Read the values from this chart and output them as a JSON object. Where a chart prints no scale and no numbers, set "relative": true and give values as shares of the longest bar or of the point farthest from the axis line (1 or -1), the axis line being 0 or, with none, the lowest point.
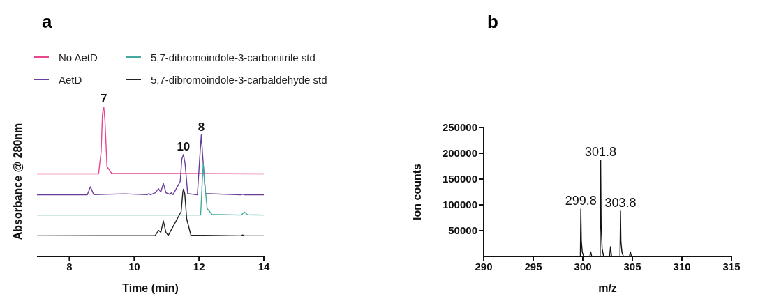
{
  "chart_data": [
    {
      "type": "line",
      "title": "a",
      "xlabel": "Time (min)",
      "ylabel": "Absorbance @ 280nm",
      "relative": true,
      "xlim": [
        7,
        14
      ],
      "xticks": [
        8,
        10,
        12,
        14
      ],
      "legend": "top",
      "grid": false,
      "marker": "none",
      "line_style": "solid",
      "series": [
        {
          "name": "No AetD",
          "color": "#e8478f",
          "x": [
            7,
            8.9,
            8.98,
            9.02,
            9.06,
            9.1,
            9.16,
            9.3,
            14
          ],
          "values": [
            0.551,
            0.551,
            0.7,
            0.95,
            1,
            0.9,
            0.6,
            0.555,
            0.551
          ]
        },
        {
          "name": "AetD",
          "color": "#6a3d9a",
          "x": [
            7,
            8.55,
            8.65,
            8.75,
            9.7,
            10.4,
            10.45,
            10.5,
            10.65,
            10.75,
            10.82,
            10.9,
            10.98,
            11.1,
            11.15,
            11.2,
            11.42,
            11.47,
            11.52,
            11.57,
            11.65,
            11.95,
            12.02,
            12.07,
            12.12,
            12.2,
            13.3,
            13.35,
            13.4,
            14
          ],
          "values": [
            0.411,
            0.411,
            0.465,
            0.413,
            0.418,
            0.412,
            0.42,
            0.412,
            0.425,
            0.452,
            0.43,
            0.488,
            0.425,
            0.415,
            0.425,
            0.413,
            0.5,
            0.65,
            0.68,
            0.62,
            0.42,
            0.411,
            0.65,
            0.811,
            0.65,
            0.42,
            0.411,
            0.416,
            0.411,
            0.411
          ]
        },
        {
          "name": "5,7-dibromoindole-3-carbonitrile std",
          "color": "#45a8a0",
          "x": [
            7,
            12.05,
            12.1,
            12.13,
            12.17,
            12.25,
            12.4,
            13.3,
            13.4,
            13.5,
            14
          ],
          "values": [
            0.276,
            0.276,
            0.5,
            0.618,
            0.5,
            0.32,
            0.28,
            0.276,
            0.296,
            0.278,
            0.276
          ]
        },
        {
          "name": "5,7-dibromoindole-3-carbaldehyde std",
          "color": "#222222",
          "x": [
            7,
            10.65,
            10.75,
            10.82,
            10.9,
            10.98,
            11.05,
            11.45,
            11.5,
            11.52,
            11.56,
            11.62,
            11.75,
            13.3,
            13.35,
            13.4,
            14
          ],
          "values": [
            0.138,
            0.14,
            0.174,
            0.16,
            0.237,
            0.16,
            0.14,
            0.3,
            0.43,
            0.449,
            0.42,
            0.25,
            0.142,
            0.138,
            0.143,
            0.138,
            0.138
          ]
        }
      ],
      "annotations": [
        {
          "text": "7",
          "x": 9.06,
          "y": 1
        },
        {
          "text": "10",
          "x": 11.52,
          "y": 0.68
        },
        {
          "text": "8",
          "x": 12.07,
          "y": 0.811
        }
      ]
    },
    {
      "type": "line",
      "title": "b",
      "xlabel": "m/z",
      "ylabel": "Ion counts",
      "xlim": [
        290,
        315
      ],
      "xticks": [
        290,
        295,
        300,
        305,
        310,
        315
      ],
      "ylim": [
        0,
        250000
      ],
      "yticks": [
        50000,
        100000,
        150000,
        200000,
        250000
      ],
      "legend": false,
      "grid": false,
      "marker": "none",
      "line_style": "solid",
      "series": [
        {
          "color": "#111111",
          "x": [
            290,
            299.75,
            299.8,
            299.85,
            299.95,
            300.1,
            300.7,
            300.8,
            300.9,
            301.75,
            301.8,
            301.85,
            301.95,
            302.1,
            302.7,
            302.8,
            302.9,
            303.75,
            303.8,
            303.85,
            303.95,
            304.1,
            304.7,
            304.8,
            304.9,
            315
          ],
          "values": [
            0,
            0,
            92000,
            30000,
            8000,
            0,
            0,
            9000,
            0,
            0,
            187000,
            60000,
            15000,
            0,
            0,
            19000,
            0,
            0,
            88000,
            28000,
            8000,
            0,
            0,
            9000,
            0,
            0
          ]
        }
      ],
      "annotations": [
        {
          "text": "299.8",
          "x": 299.8,
          "y": 92000
        },
        {
          "text": "301.8",
          "x": 301.8,
          "y": 187000
        },
        {
          "text": "303.8",
          "x": 303.8,
          "y": 88000
        }
      ]
    }
  ]
}
